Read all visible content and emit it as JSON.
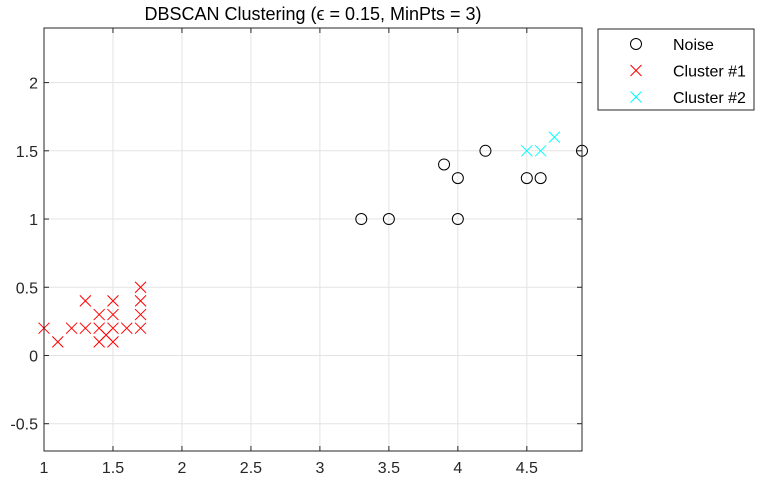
{
  "chart_data": {
    "type": "scatter",
    "title": "DBSCAN Clustering (ϵ = 0.15, MinPts = 3)",
    "xlabel": "",
    "ylabel": "",
    "xlim": [
      1,
      4.9
    ],
    "ylim": [
      -0.7,
      2.4
    ],
    "xticks": [
      "1",
      "1.5",
      "2",
      "2.5",
      "3",
      "3.5",
      "4",
      "4.5"
    ],
    "yticks": [
      "-0.5",
      "0",
      "0.5",
      "1",
      "1.5",
      "2"
    ],
    "grid": true,
    "legend_position": "outside-top-right",
    "series": [
      {
        "name": "Noise",
        "marker": "circle",
        "color": "#000000",
        "points": [
          [
            3.3,
            1.0
          ],
          [
            3.5,
            1.0
          ],
          [
            3.9,
            1.4
          ],
          [
            4.0,
            1.0
          ],
          [
            4.0,
            1.3
          ],
          [
            4.2,
            1.5
          ],
          [
            4.5,
            1.3
          ],
          [
            4.6,
            1.3
          ],
          [
            4.9,
            1.5
          ]
        ]
      },
      {
        "name": "Cluster #1",
        "marker": "x",
        "color": "#ff0000",
        "points": [
          [
            1.0,
            0.2
          ],
          [
            1.1,
            0.1
          ],
          [
            1.2,
            0.2
          ],
          [
            1.3,
            0.2
          ],
          [
            1.3,
            0.4
          ],
          [
            1.4,
            0.1
          ],
          [
            1.4,
            0.2
          ],
          [
            1.4,
            0.3
          ],
          [
            1.45,
            0.15
          ],
          [
            1.5,
            0.1
          ],
          [
            1.5,
            0.2
          ],
          [
            1.5,
            0.3
          ],
          [
            1.5,
            0.4
          ],
          [
            1.6,
            0.2
          ],
          [
            1.7,
            0.2
          ],
          [
            1.7,
            0.3
          ],
          [
            1.7,
            0.4
          ],
          [
            1.7,
            0.5
          ]
        ]
      },
      {
        "name": "Cluster #2",
        "marker": "x",
        "color": "#00ffff",
        "points": [
          [
            4.5,
            1.5
          ],
          [
            4.6,
            1.5
          ],
          [
            4.7,
            1.6
          ]
        ]
      }
    ]
  }
}
